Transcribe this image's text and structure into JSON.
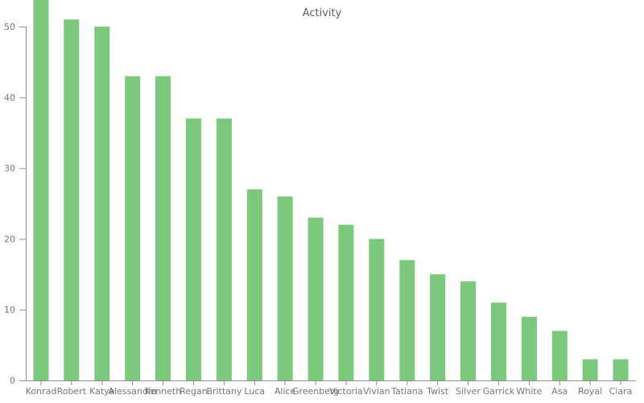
{
  "chart": {
    "title": "Activity"
  },
  "chart_data": {
    "type": "bar",
    "title": "Activity",
    "xlabel": "",
    "ylabel": "",
    "categories": [
      "Konrad",
      "Robert",
      "Katya",
      "Alessandro",
      "Kenneth",
      "Regan",
      "Brittany",
      "Luca",
      "Alice",
      "Greenberg",
      "Victoria",
      "Vivian",
      "Tatiana",
      "Twist",
      "Silver",
      "Garrick",
      "White",
      "Asa",
      "Royal",
      "Ciara"
    ],
    "values": [
      54,
      51,
      50,
      43,
      43,
      37,
      37,
      27,
      26,
      23,
      22,
      20,
      17,
      15,
      14,
      11,
      9,
      7,
      3,
      3
    ],
    "yticks": [
      0,
      10,
      20,
      30,
      40,
      50
    ],
    "ylim": [
      0,
      53.8
    ],
    "first_bar_clipped_at_top": true,
    "grid": false,
    "legend": "none",
    "colors": {
      "bar": "#7cc87d",
      "axis": "#8c8c8c",
      "tick_label": "#757575",
      "title": "#5f5f5f",
      "background": "#ffffff"
    }
  }
}
